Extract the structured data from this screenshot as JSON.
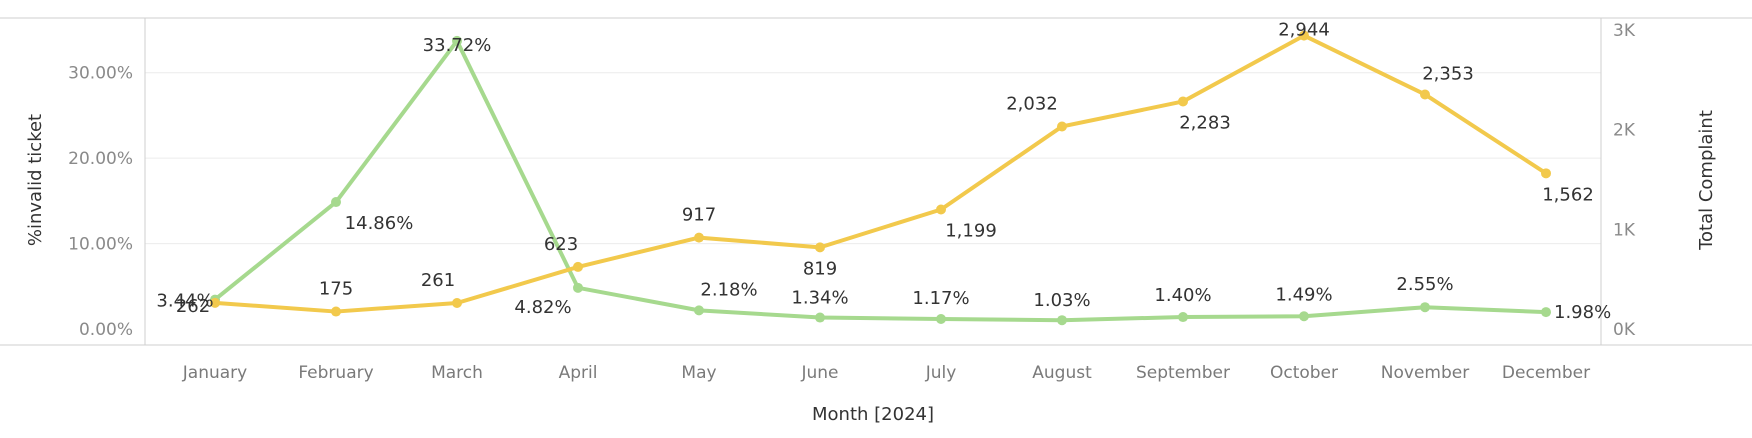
{
  "chart_data": {
    "type": "line",
    "xlabel": "Month [2024]",
    "ylabel_left": "%invalid ticket",
    "ylabel_right": "Total Complaint",
    "categories": [
      "January",
      "February",
      "March",
      "April",
      "May",
      "June",
      "July",
      "August",
      "September",
      "October",
      "November",
      "December"
    ],
    "y_left": {
      "min": 0,
      "max": 35,
      "ticks": [
        0,
        10,
        20,
        30
      ],
      "tick_labels": [
        "0.00%",
        "10.00%",
        "20.00%",
        "30.00%"
      ]
    },
    "y_right": {
      "min": 0,
      "max": 3000,
      "ticks": [
        0,
        1000,
        2000,
        3000
      ],
      "tick_labels": [
        "0K",
        "1K",
        "2K",
        "3K"
      ]
    },
    "grid": true,
    "series": [
      {
        "axis": "left",
        "color": "#a6d98e",
        "values": [
          3.44,
          14.86,
          33.72,
          4.82,
          2.18,
          1.34,
          1.17,
          1.03,
          1.4,
          1.49,
          2.55,
          1.98
        ],
        "labels": [
          "3.44%",
          "14.86%",
          "33.72%",
          "4.82%",
          "2.18%",
          "1.34%",
          "1.17%",
          "1.03%",
          "1.40%",
          "1.49%",
          "2.55%",
          "1.98%"
        ]
      },
      {
        "axis": "right",
        "color": "#f2c94c",
        "values": [
          262,
          175,
          261,
          623,
          917,
          819,
          1199,
          2032,
          2283,
          2944,
          2353,
          1562
        ],
        "labels": [
          "262",
          "175",
          "261",
          "623",
          "917",
          "819",
          "1,199",
          "2,032",
          "2,283",
          "2,944",
          "2,353",
          "1,562"
        ]
      }
    ]
  }
}
